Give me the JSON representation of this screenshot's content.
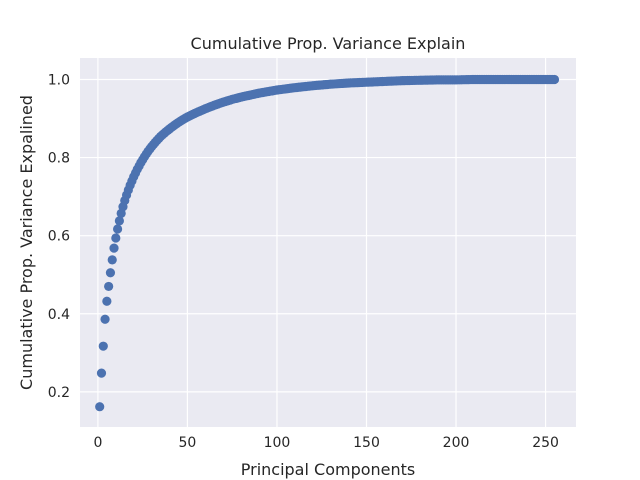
{
  "chart_data": {
    "type": "scatter",
    "title": "Cumulative Prop. Variance Explain",
    "xlabel": "Principal Components",
    "ylabel": "Cumulative Prop. Variance Expalined",
    "xlim": [
      -10,
      267
    ],
    "ylim": [
      0.11,
      1.055
    ],
    "x_ticks": [
      0,
      50,
      100,
      150,
      200,
      250
    ],
    "y_ticks": [
      0.2,
      0.4,
      0.6,
      0.8,
      1.0
    ],
    "x_tick_labels": [
      "0",
      "50",
      "100",
      "150",
      "200",
      "250"
    ],
    "y_tick_labels": [
      "0.2",
      "0.4",
      "0.6",
      "0.8",
      "1.0"
    ],
    "grid": true,
    "marker_color": "#4c72b0",
    "background_color": "#eaeaf2",
    "grid_color": "#ffffff",
    "x": [
      1,
      2,
      3,
      4,
      5,
      6,
      7,
      8,
      9,
      10,
      11,
      12,
      13,
      14,
      15,
      16,
      17,
      18,
      19,
      20,
      22,
      24,
      26,
      28,
      30,
      32,
      35,
      38,
      41,
      44,
      47,
      50,
      55,
      60,
      65,
      70,
      75,
      80,
      85,
      90,
      95,
      100,
      110,
      120,
      130,
      140,
      150,
      160,
      170,
      180,
      190,
      200,
      210,
      220,
      230,
      240,
      250,
      255
    ],
    "y": [
      0.162,
      0.248,
      0.317,
      0.386,
      0.432,
      0.47,
      0.505,
      0.538,
      0.568,
      0.594,
      0.617,
      0.638,
      0.657,
      0.674,
      0.69,
      0.704,
      0.717,
      0.729,
      0.74,
      0.751,
      0.77,
      0.787,
      0.802,
      0.816,
      0.828,
      0.839,
      0.854,
      0.866,
      0.877,
      0.887,
      0.896,
      0.904,
      0.915,
      0.925,
      0.934,
      0.942,
      0.949,
      0.955,
      0.96,
      0.965,
      0.969,
      0.973,
      0.979,
      0.984,
      0.988,
      0.991,
      0.993,
      0.995,
      0.997,
      0.998,
      0.999,
      0.999,
      1.0,
      1.0,
      1.0,
      1.0,
      1.0,
      1.0
    ]
  }
}
